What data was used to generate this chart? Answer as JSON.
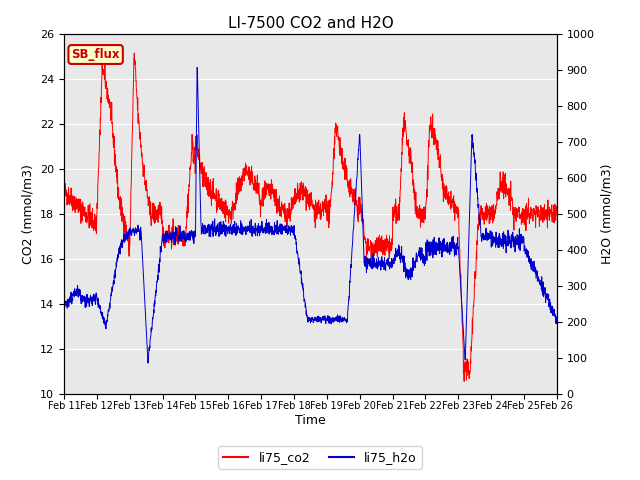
{
  "title": "LI-7500 CO2 and H2O",
  "xlabel": "Time",
  "ylabel_left": "CO2 (mmol/m3)",
  "ylabel_right": "H2O (mmol/m3)",
  "ylim_left": [
    10,
    26
  ],
  "ylim_right": [
    0,
    1000
  ],
  "yticks_left": [
    10,
    12,
    14,
    16,
    18,
    20,
    22,
    24,
    26
  ],
  "yticks_right": [
    0,
    100,
    200,
    300,
    400,
    500,
    600,
    700,
    800,
    900,
    1000
  ],
  "xtick_labels": [
    "Feb 11",
    "Feb 12",
    "Feb 13",
    "Feb 14",
    "Feb 15",
    "Feb 16",
    "Feb 17",
    "Feb 18",
    "Feb 19",
    "Feb 20",
    "Feb 21",
    "Feb 22",
    "Feb 23",
    "Feb 24",
    "Feb 25",
    "Feb 26"
  ],
  "color_co2": "#ff0000",
  "color_h2o": "#0000cc",
  "legend_co2": "li75_co2",
  "legend_h2o": "li75_h2o",
  "annotation_text": "SB_flux",
  "annotation_bg": "#ffffcc",
  "annotation_border": "#cc0000",
  "bg_color": "#e8e8e8",
  "title_fontsize": 11,
  "axis_fontsize": 9,
  "tick_fontsize": 8,
  "xtick_fontsize": 7,
  "legend_fontsize": 9,
  "linewidth": 0.7
}
